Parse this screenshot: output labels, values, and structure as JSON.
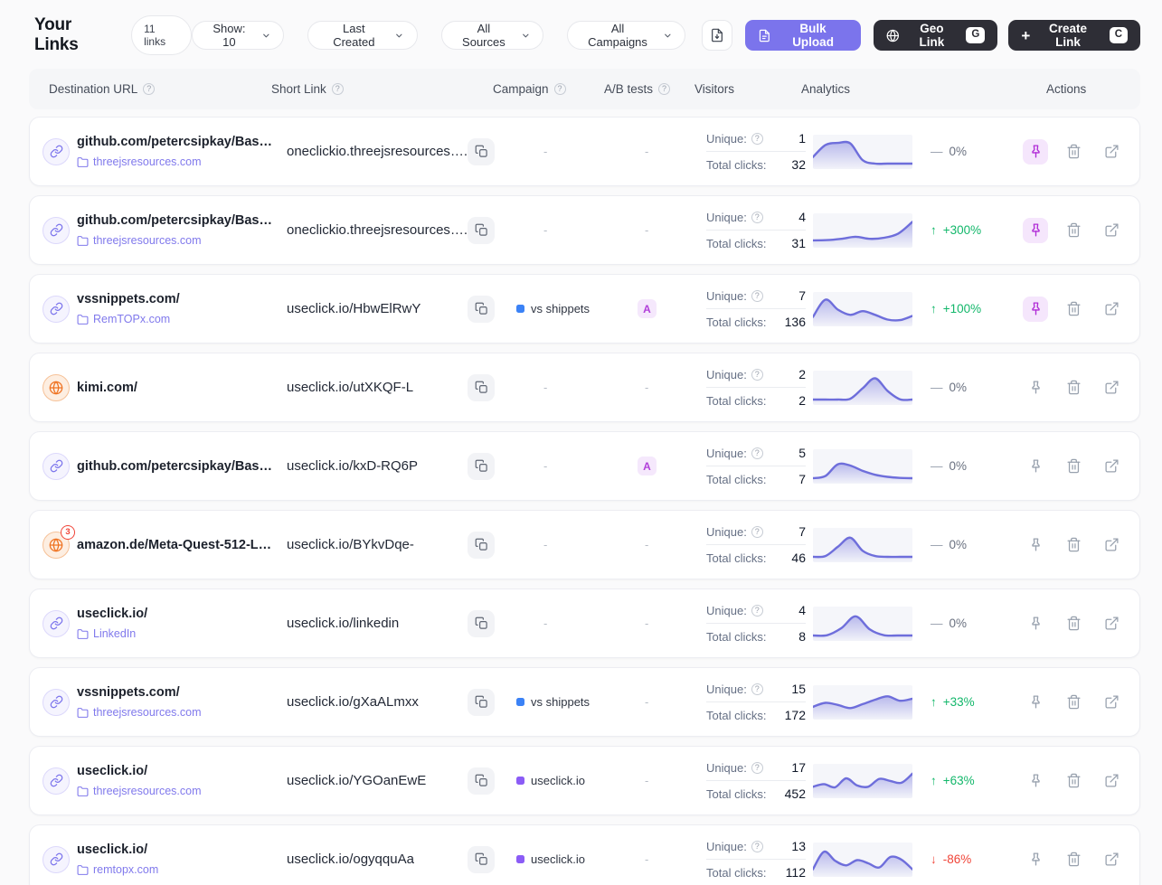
{
  "page": {
    "title": "Your Links",
    "count_badge": "11 links"
  },
  "toolbar": {
    "show_filter": "Show: 10",
    "sort_filter": "Last Created",
    "source_filter": "All Sources",
    "campaign_filter": "All Campaigns",
    "bulk_upload_label": "Bulk Upload",
    "geo_link_label": "Geo Link",
    "geo_link_shortcut": "G",
    "create_link_label": "Create Link",
    "create_link_shortcut": "C"
  },
  "table": {
    "headers": [
      {
        "label": "Destination URL",
        "help": true
      },
      {
        "label": "Short Link",
        "help": true
      },
      {
        "label": "Campaign",
        "help": true
      },
      {
        "label": "A/B tests",
        "help": true
      },
      {
        "label": "Visitors",
        "help": false
      },
      {
        "label": "Analytics",
        "help": false
      },
      {
        "label": "Actions",
        "help": false
      }
    ]
  },
  "labels": {
    "unique": "Unique:",
    "total_clicks": "Total clicks:",
    "empty": "-"
  },
  "icons": {
    "help": "?",
    "plus": "+",
    "trend_up": "↑",
    "trend_down": "↓",
    "trend_flat": "—"
  },
  "colors": {
    "accent_purple": "#7b74ec",
    "dark_button": "#2e2e36",
    "positive": "#12b76a",
    "negative": "#f04438",
    "pinned": "#b02bd6",
    "spark_line": "#6e6edb",
    "campaign_blue": "#3b82f6",
    "campaign_purple": "#8b5cf6"
  },
  "rows": [
    {
      "icon": "link",
      "badge": null,
      "destination": "github.com/petercsipkay/Bas…",
      "folder": "threejsresources.com",
      "short_link": "oneclickio.threejsresources….",
      "campaign": null,
      "ab_test": null,
      "unique": "1",
      "total_clicks": "32",
      "trend": {
        "dir": "flat",
        "text": "0%"
      },
      "pinned": true,
      "sparkline": [
        0.32,
        0.78,
        0.86,
        0.84,
        0.2,
        0.07,
        0.07,
        0.07,
        0.07
      ]
    },
    {
      "icon": "link",
      "badge": null,
      "destination": "github.com/petercsipkay/Bas…",
      "folder": "threejsresources.com",
      "short_link": "oneclickio.threejsresources….",
      "campaign": null,
      "ab_test": null,
      "unique": "4",
      "total_clicks": "31",
      "trend": {
        "dir": "up",
        "text": "+300%"
      },
      "pinned": true,
      "sparkline": [
        0.14,
        0.15,
        0.2,
        0.28,
        0.2,
        0.24,
        0.4,
        0.85
      ]
    },
    {
      "icon": "link",
      "badge": null,
      "destination": "vssnippets.com/",
      "folder": "RemTOPx.com",
      "short_link": "useclick.io/HbwElRwY",
      "campaign": {
        "name": "vs shippets",
        "color": "#3b82f6"
      },
      "ab_test": "A",
      "unique": "7",
      "total_clicks": "136",
      "trend": {
        "dir": "up",
        "text": "+100%"
      },
      "pinned": true,
      "sparkline": [
        0.22,
        0.88,
        0.5,
        0.3,
        0.44,
        0.3,
        0.12,
        0.1,
        0.26
      ]
    },
    {
      "icon": "globe",
      "badge": null,
      "destination": "kimi.com/",
      "folder": null,
      "short_link": "useclick.io/utXKQF-L",
      "campaign": null,
      "ab_test": null,
      "unique": "2",
      "total_clicks": "2",
      "trend": {
        "dir": "flat",
        "text": "0%"
      },
      "pinned": false,
      "sparkline": [
        0.07,
        0.07,
        0.07,
        0.1,
        0.5,
        0.88,
        0.4,
        0.08,
        0.07
      ]
    },
    {
      "icon": "link",
      "badge": null,
      "destination": "github.com/petercsipkay/Bas…",
      "folder": null,
      "short_link": "useclick.io/kxD-RQ6P",
      "campaign": null,
      "ab_test": "A",
      "unique": "5",
      "total_clicks": "7",
      "trend": {
        "dir": "flat",
        "text": "0%"
      },
      "pinned": false,
      "sparkline": [
        0.07,
        0.15,
        0.6,
        0.55,
        0.35,
        0.2,
        0.12,
        0.08,
        0.07
      ]
    },
    {
      "icon": "globe",
      "badge": "3",
      "destination": "amazon.de/Meta-Quest-512-L…",
      "folder": null,
      "short_link": "useclick.io/BYkvDqe-",
      "campaign": null,
      "ab_test": null,
      "unique": "7",
      "total_clicks": "46",
      "trend": {
        "dir": "flat",
        "text": "0%"
      },
      "pinned": false,
      "sparkline": [
        0.07,
        0.1,
        0.45,
        0.8,
        0.3,
        0.1,
        0.07,
        0.07,
        0.07
      ]
    },
    {
      "icon": "link",
      "badge": null,
      "destination": "useclick.io/",
      "folder": "LinkedIn",
      "short_link": "useclick.io/linkedin",
      "campaign": null,
      "ab_test": null,
      "unique": "4",
      "total_clicks": "8",
      "trend": {
        "dir": "flat",
        "text": "0%"
      },
      "pinned": false,
      "sparkline": [
        0.07,
        0.08,
        0.35,
        0.8,
        0.3,
        0.08,
        0.07,
        0.07
      ]
    },
    {
      "icon": "link",
      "badge": null,
      "destination": "vssnippets.com/",
      "folder": "threejsresources.com",
      "short_link": "useclick.io/gXaALmxx",
      "campaign": {
        "name": "vs shippets",
        "color": "#3b82f6"
      },
      "ab_test": null,
      "unique": "15",
      "total_clicks": "172",
      "trend": {
        "dir": "up",
        "text": "+33%"
      },
      "pinned": false,
      "sparkline": [
        0.35,
        0.5,
        0.42,
        0.3,
        0.45,
        0.62,
        0.75,
        0.58,
        0.66
      ]
    },
    {
      "icon": "link",
      "badge": null,
      "destination": "useclick.io/",
      "folder": "threejsresources.com",
      "short_link": "useclick.io/YGOanEwE",
      "campaign": {
        "name": "useclick.io",
        "color": "#8b5cf6"
      },
      "ab_test": null,
      "unique": "17",
      "total_clicks": "452",
      "trend": {
        "dir": "up",
        "text": "+63%"
      },
      "pinned": false,
      "sparkline": [
        0.3,
        0.4,
        0.28,
        0.62,
        0.35,
        0.3,
        0.6,
        0.52,
        0.45,
        0.8
      ]
    },
    {
      "icon": "link",
      "badge": null,
      "destination": "useclick.io/",
      "folder": "remtopx.com",
      "short_link": "useclick.io/ogyqquAa",
      "campaign": {
        "name": "useclick.io",
        "color": "#8b5cf6"
      },
      "ab_test": null,
      "unique": "13",
      "total_clicks": "112",
      "trend": {
        "dir": "down",
        "text": "-86%"
      },
      "pinned": false,
      "sparkline": [
        0.15,
        0.82,
        0.48,
        0.3,
        0.5,
        0.38,
        0.22,
        0.62,
        0.52,
        0.15
      ]
    }
  ]
}
